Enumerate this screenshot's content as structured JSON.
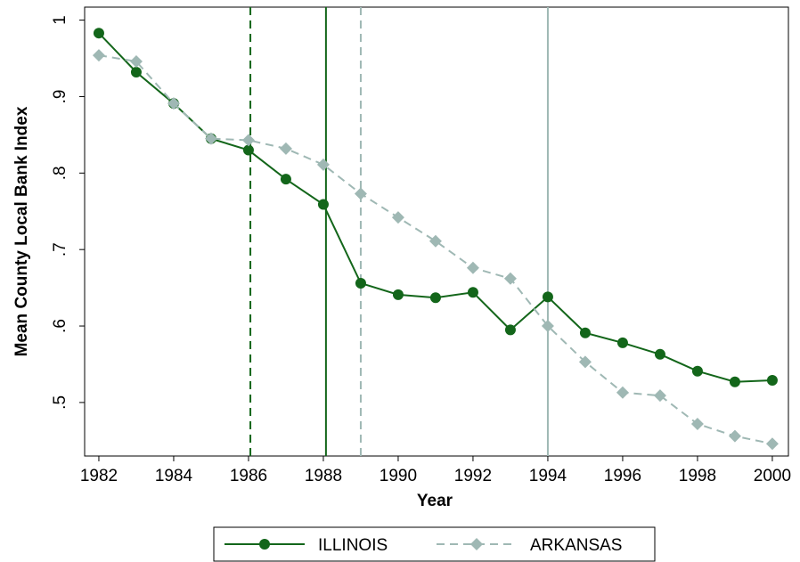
{
  "chart_data": {
    "type": "line",
    "x_label": "Year",
    "y_label": "Mean County Local Bank Index",
    "x": [
      1982,
      1983,
      1984,
      1985,
      1986,
      1987,
      1988,
      1989,
      1990,
      1991,
      1992,
      1993,
      1994,
      1995,
      1996,
      1997,
      1998,
      1999,
      2000
    ],
    "series": [
      {
        "name": "ILLINOIS",
        "color": "#13661a",
        "marker": "circle",
        "dash": "solid",
        "values": [
          0.983,
          0.932,
          0.891,
          0.845,
          0.83,
          0.792,
          0.759,
          0.656,
          0.641,
          0.637,
          0.644,
          0.595,
          0.638,
          0.591,
          0.578,
          0.563,
          0.541,
          0.527,
          0.529
        ]
      },
      {
        "name": "ARKANSAS",
        "color": "#9fb8b4",
        "marker": "diamond",
        "dash": "dashed",
        "values": [
          0.954,
          0.946,
          0.891,
          0.845,
          0.843,
          0.832,
          0.811,
          0.773,
          0.742,
          0.711,
          0.676,
          0.662,
          0.6,
          0.553,
          0.513,
          0.509,
          0.472,
          0.456,
          0.446
        ]
      }
    ],
    "vlines": [
      {
        "x": 1986.05,
        "color": "#13661a",
        "dash": "dashed"
      },
      {
        "x": 1988.07,
        "color": "#13661a",
        "dash": "solid"
      },
      {
        "x": 1989,
        "color": "#9fb8b4",
        "dash": "dashed"
      },
      {
        "x": 1994,
        "color": "#9fb8b4",
        "dash": "solid"
      }
    ],
    "xlim": [
      1981.62,
      2000.43
    ],
    "ylim": [
      0.43,
      1.017
    ],
    "xticks": [
      1982,
      1984,
      1986,
      1988,
      1990,
      1992,
      1994,
      1996,
      1998,
      2000
    ],
    "yticks": [
      {
        "value": 0.5,
        "label": ".5"
      },
      {
        "value": 0.6,
        "label": ".6"
      },
      {
        "value": 0.7,
        "label": ".7"
      },
      {
        "value": 0.8,
        "label": ".8"
      },
      {
        "value": 0.9,
        "label": ".9"
      },
      1
    ],
    "legend": "bottom"
  }
}
